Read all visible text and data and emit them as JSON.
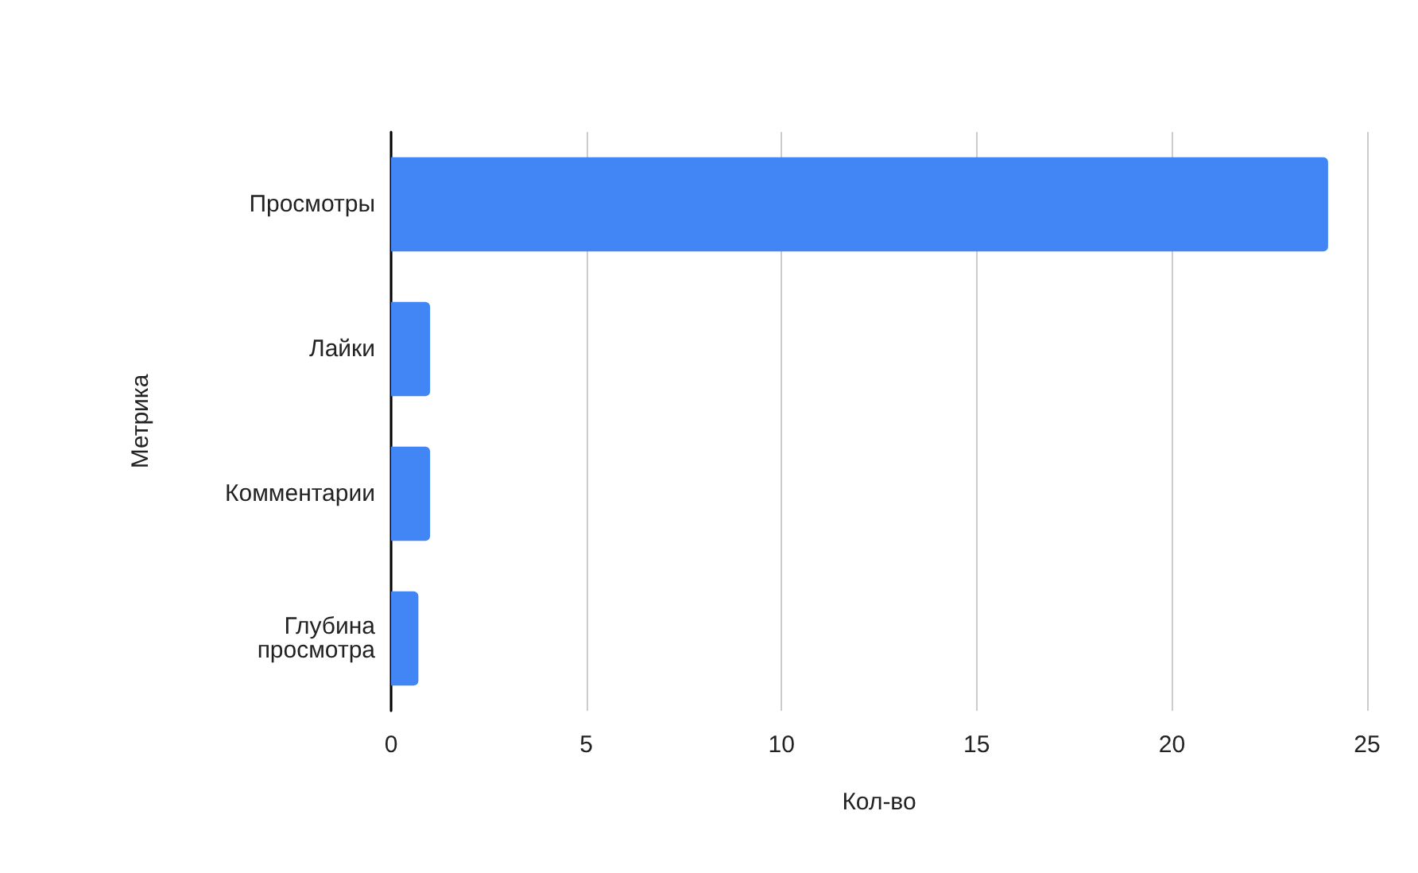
{
  "chart_data": {
    "type": "bar",
    "orientation": "horizontal",
    "xlabel": "Кол-во",
    "ylabel": "Метрика",
    "categories": [
      "Просмотры",
      "Лайки",
      "Комментарии",
      "Глубина просмотра"
    ],
    "values": [
      24,
      1,
      1,
      0.7
    ],
    "color": "#4285f4",
    "xlim": [
      0,
      25
    ],
    "xticks": [
      0,
      5,
      10,
      15,
      20,
      25
    ],
    "grid": "x"
  }
}
